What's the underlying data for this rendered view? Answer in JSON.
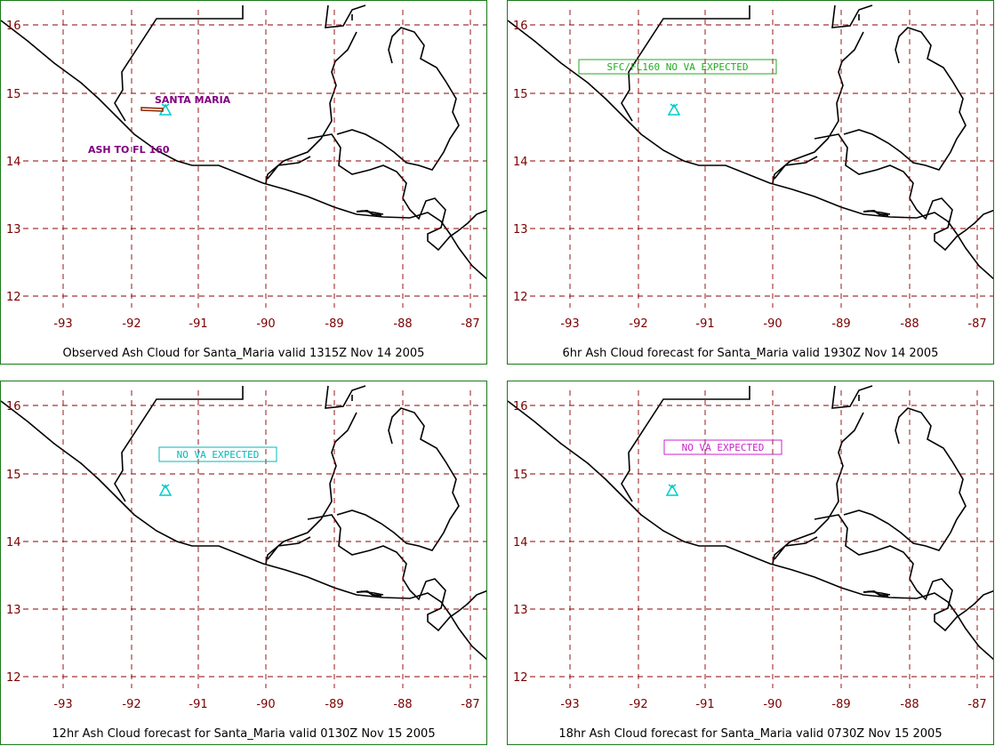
{
  "panels": [
    {
      "caption": "Observed Ash Cloud for Santa_Maria valid 1315Z Nov 14 2005",
      "volcano_label": "SANTA MARIA",
      "ash_label": "ASH TO FL 160",
      "box_label": "",
      "box_color": ""
    },
    {
      "caption": "6hr Ash Cloud forecast for Santa_Maria valid 1930Z Nov 14 2005",
      "volcano_label": "",
      "ash_label": "",
      "box_label": "SFC/FL160 NO VA EXPECTED",
      "box_color": "#22aa22"
    },
    {
      "caption": "12hr Ash Cloud forecast for Santa_Maria valid 0130Z Nov 15 2005",
      "volcano_label": "",
      "ash_label": "",
      "box_label": "NO VA EXPECTED",
      "box_color": "#00b8b8"
    },
    {
      "caption": "18hr Ash Cloud forecast for Santa_Maria valid 0730Z Nov 15 2005",
      "volcano_label": "",
      "ash_label": "",
      "box_label": "NO VA EXPECTED",
      "box_color": "#cc22cc"
    }
  ],
  "axes": {
    "lat_ticks": [
      "16",
      "15",
      "14",
      "13",
      "12"
    ],
    "lon_ticks": [
      "-93",
      "-92",
      "-91",
      "-90",
      "-89",
      "-88",
      "-87"
    ]
  },
  "colors": {
    "grid": "#8b0000",
    "tick_text": "#7a0000",
    "frame": "#1a7a1a",
    "volcano": "#00cccc",
    "ash_label": "#800080"
  }
}
